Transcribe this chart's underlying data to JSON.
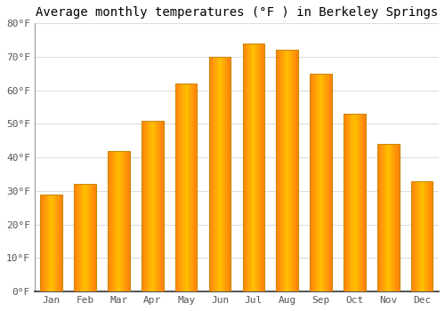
{
  "title": "Average monthly temperatures (°F ) in Berkeley Springs",
  "months": [
    "Jan",
    "Feb",
    "Mar",
    "Apr",
    "May",
    "Jun",
    "Jul",
    "Aug",
    "Sep",
    "Oct",
    "Nov",
    "Dec"
  ],
  "values": [
    29,
    32,
    42,
    51,
    62,
    70,
    74,
    72,
    65,
    53,
    44,
    33
  ],
  "bar_color_main": "#FFAA00",
  "bar_color_light": "#FFD060",
  "bar_edge_color": "#CC8800",
  "ylim": [
    0,
    80
  ],
  "yticks": [
    0,
    10,
    20,
    30,
    40,
    50,
    60,
    70,
    80
  ],
  "ytick_labels": [
    "0°F",
    "10°F",
    "20°F",
    "30°F",
    "40°F",
    "50°F",
    "60°F",
    "70°F",
    "80°F"
  ],
  "background_color": "#FFFFFF",
  "grid_color": "#DDDDDD",
  "title_fontsize": 10,
  "tick_fontsize": 8,
  "bar_width": 0.65
}
